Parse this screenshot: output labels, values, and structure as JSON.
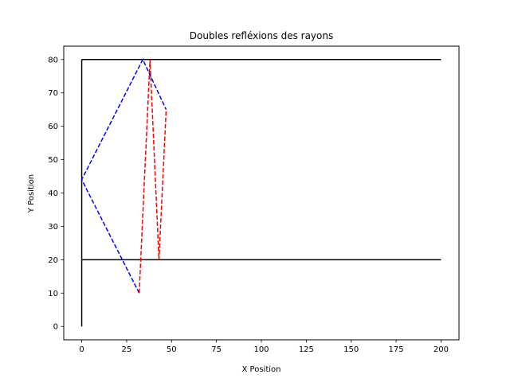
{
  "chart_data": {
    "type": "line",
    "title": "Doubles refléxions des rayons",
    "xlabel": "X Position",
    "ylabel": "Y Position",
    "xlim": [
      -10,
      210
    ],
    "ylim": [
      -4,
      84
    ],
    "xticks": [
      0,
      25,
      50,
      75,
      100,
      125,
      150,
      175,
      200
    ],
    "yticks": [
      0,
      10,
      20,
      30,
      40,
      50,
      60,
      70,
      80
    ],
    "grid": false,
    "series": [
      {
        "color": "#000000",
        "style": "solid",
        "x": [
          0,
          0
        ],
        "y": [
          0,
          80
        ]
      },
      {
        "color": "#000000",
        "style": "solid",
        "x": [
          0,
          200
        ],
        "y": [
          80,
          80
        ]
      },
      {
        "color": "#000000",
        "style": "solid",
        "x": [
          0,
          200
        ],
        "y": [
          20,
          20
        ]
      },
      {
        "color": "#0000ff",
        "style": "dashed",
        "x": [
          32,
          0,
          34,
          47
        ],
        "y": [
          10,
          44,
          80,
          65
        ]
      },
      {
        "color": "#ff0000",
        "style": "dashed",
        "x": [
          32,
          38,
          43,
          47
        ],
        "y": [
          10,
          80,
          20,
          65
        ]
      }
    ]
  }
}
